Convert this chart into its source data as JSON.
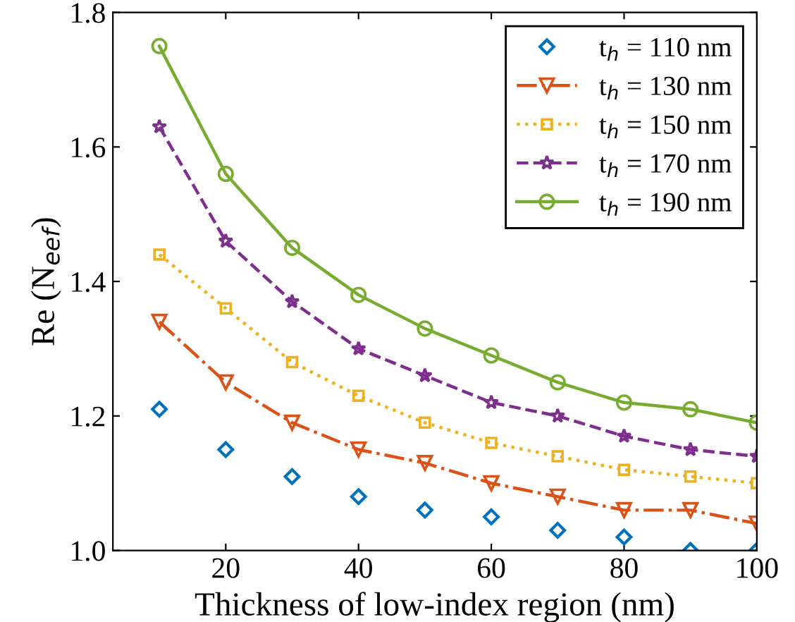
{
  "chart_data": {
    "type": "line",
    "xlabel": "Thickness of low-index region (nm)",
    "ylabel": "Re (N$_{eef}$)",
    "x": [
      10,
      20,
      30,
      40,
      50,
      60,
      70,
      80,
      90,
      100
    ],
    "xlim": [
      3,
      100
    ],
    "xticks": [
      20,
      40,
      60,
      80,
      100
    ],
    "ylim": [
      1.0,
      1.8
    ],
    "yticks": [
      {
        "value": 1.0,
        "label": "1.0"
      },
      {
        "value": 1.2,
        "label": "1.2"
      },
      {
        "value": 1.4,
        "label": "1.4"
      },
      {
        "value": 1.6,
        "label": "1.6"
      },
      {
        "value": 1.8,
        "label": "1.8"
      }
    ],
    "legend": "top right",
    "grid": false,
    "series": [
      {
        "name": "t$_{h}$ = 110 nm",
        "type": "scatter",
        "marker": "diamond",
        "color": "#0072bd",
        "values": [
          1.21,
          1.15,
          1.11,
          1.08,
          1.06,
          1.05,
          1.03,
          1.02,
          1.0,
          1.0
        ]
      },
      {
        "name": "t$_{h}$ = 130 nm",
        "marker": "triangle",
        "line_style": "dashdot",
        "color": "#d95319",
        "values": [
          1.34,
          1.25,
          1.19,
          1.15,
          1.13,
          1.1,
          1.08,
          1.06,
          1.06,
          1.04
        ]
      },
      {
        "name": "t$_{h}$ = 150 nm",
        "marker": "square",
        "line_style": "dotted",
        "color": "#edb120",
        "values": [
          1.44,
          1.36,
          1.28,
          1.23,
          1.19,
          1.16,
          1.14,
          1.12,
          1.11,
          1.1
        ]
      },
      {
        "name": "t$_{h}$ = 170 nm",
        "marker": "star",
        "line_style": "dashed",
        "color": "#7e2f8e",
        "values": [
          1.63,
          1.46,
          1.37,
          1.3,
          1.26,
          1.22,
          1.2,
          1.17,
          1.15,
          1.14
        ]
      },
      {
        "name": "t$_{h}$ = 190 nm",
        "marker": "circle",
        "line_style": "solid",
        "color": "#77ac30",
        "values": [
          1.75,
          1.56,
          1.45,
          1.38,
          1.33,
          1.29,
          1.25,
          1.22,
          1.21,
          1.19
        ]
      }
    ]
  }
}
